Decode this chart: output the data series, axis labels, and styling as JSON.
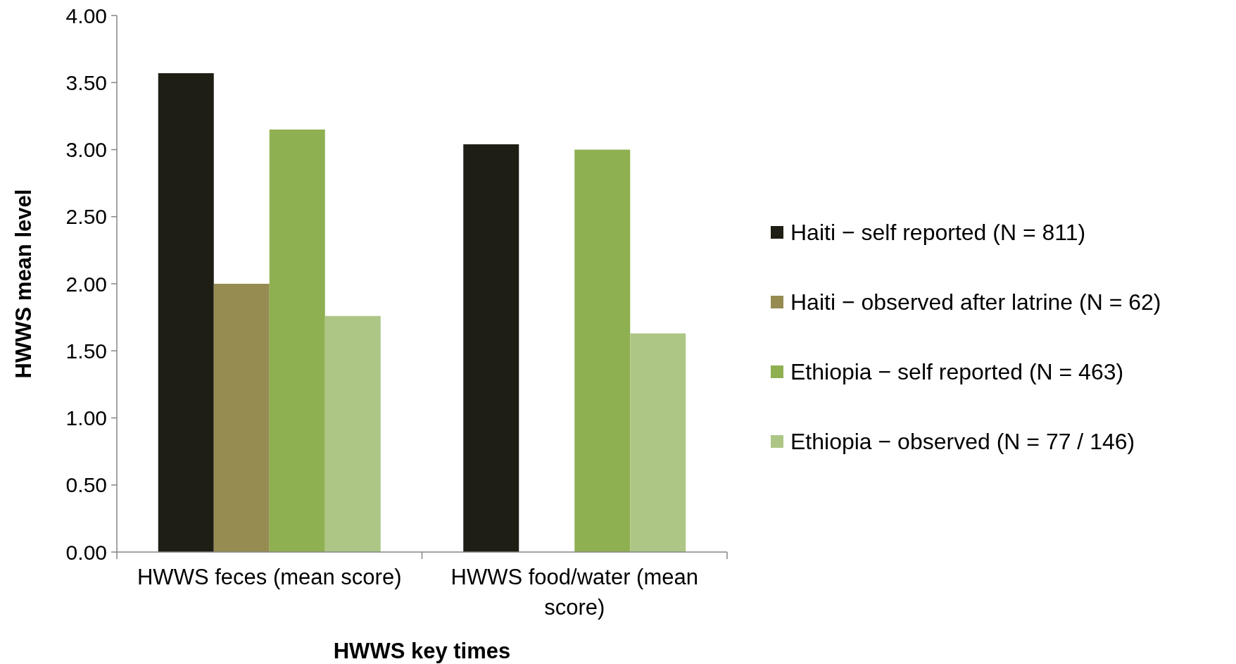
{
  "chart_data": {
    "type": "bar",
    "xlabel": "HWWS key times",
    "ylabel": "HWWS mean level",
    "categories": [
      "HWWS feces (mean score)",
      "HWWS food/water (mean score)"
    ],
    "series": [
      {
        "name": "Haiti − self reported (N = 811)",
        "color": "#1f1e14",
        "values": [
          3.57,
          3.04
        ]
      },
      {
        "name": "Haiti − observed after latrine (N = 62)",
        "color": "#968c52",
        "values": [
          2.0,
          null
        ]
      },
      {
        "name": "Ethiopia − self reported (N = 463)",
        "color": "#8fb051",
        "values": [
          3.15,
          3.0
        ]
      },
      {
        "name": "Ethiopia − observed (N = 77 / 146)",
        "color": "#adc686",
        "values": [
          1.76,
          1.63
        ]
      }
    ],
    "ylim": [
      0,
      4
    ],
    "yticks": [
      {
        "value": 0,
        "label": "0.00"
      },
      {
        "value": 0.5,
        "label": "0.50"
      },
      {
        "value": 1,
        "label": "1.00"
      },
      {
        "value": 1.5,
        "label": "1.50"
      },
      {
        "value": 2,
        "label": "2.00"
      },
      {
        "value": 2.5,
        "label": "2.50"
      },
      {
        "value": 3,
        "label": "3.00"
      },
      {
        "value": 3.5,
        "label": "3.50"
      },
      {
        "value": 4,
        "label": "4.00"
      }
    ],
    "grid": false,
    "legend": "right"
  }
}
